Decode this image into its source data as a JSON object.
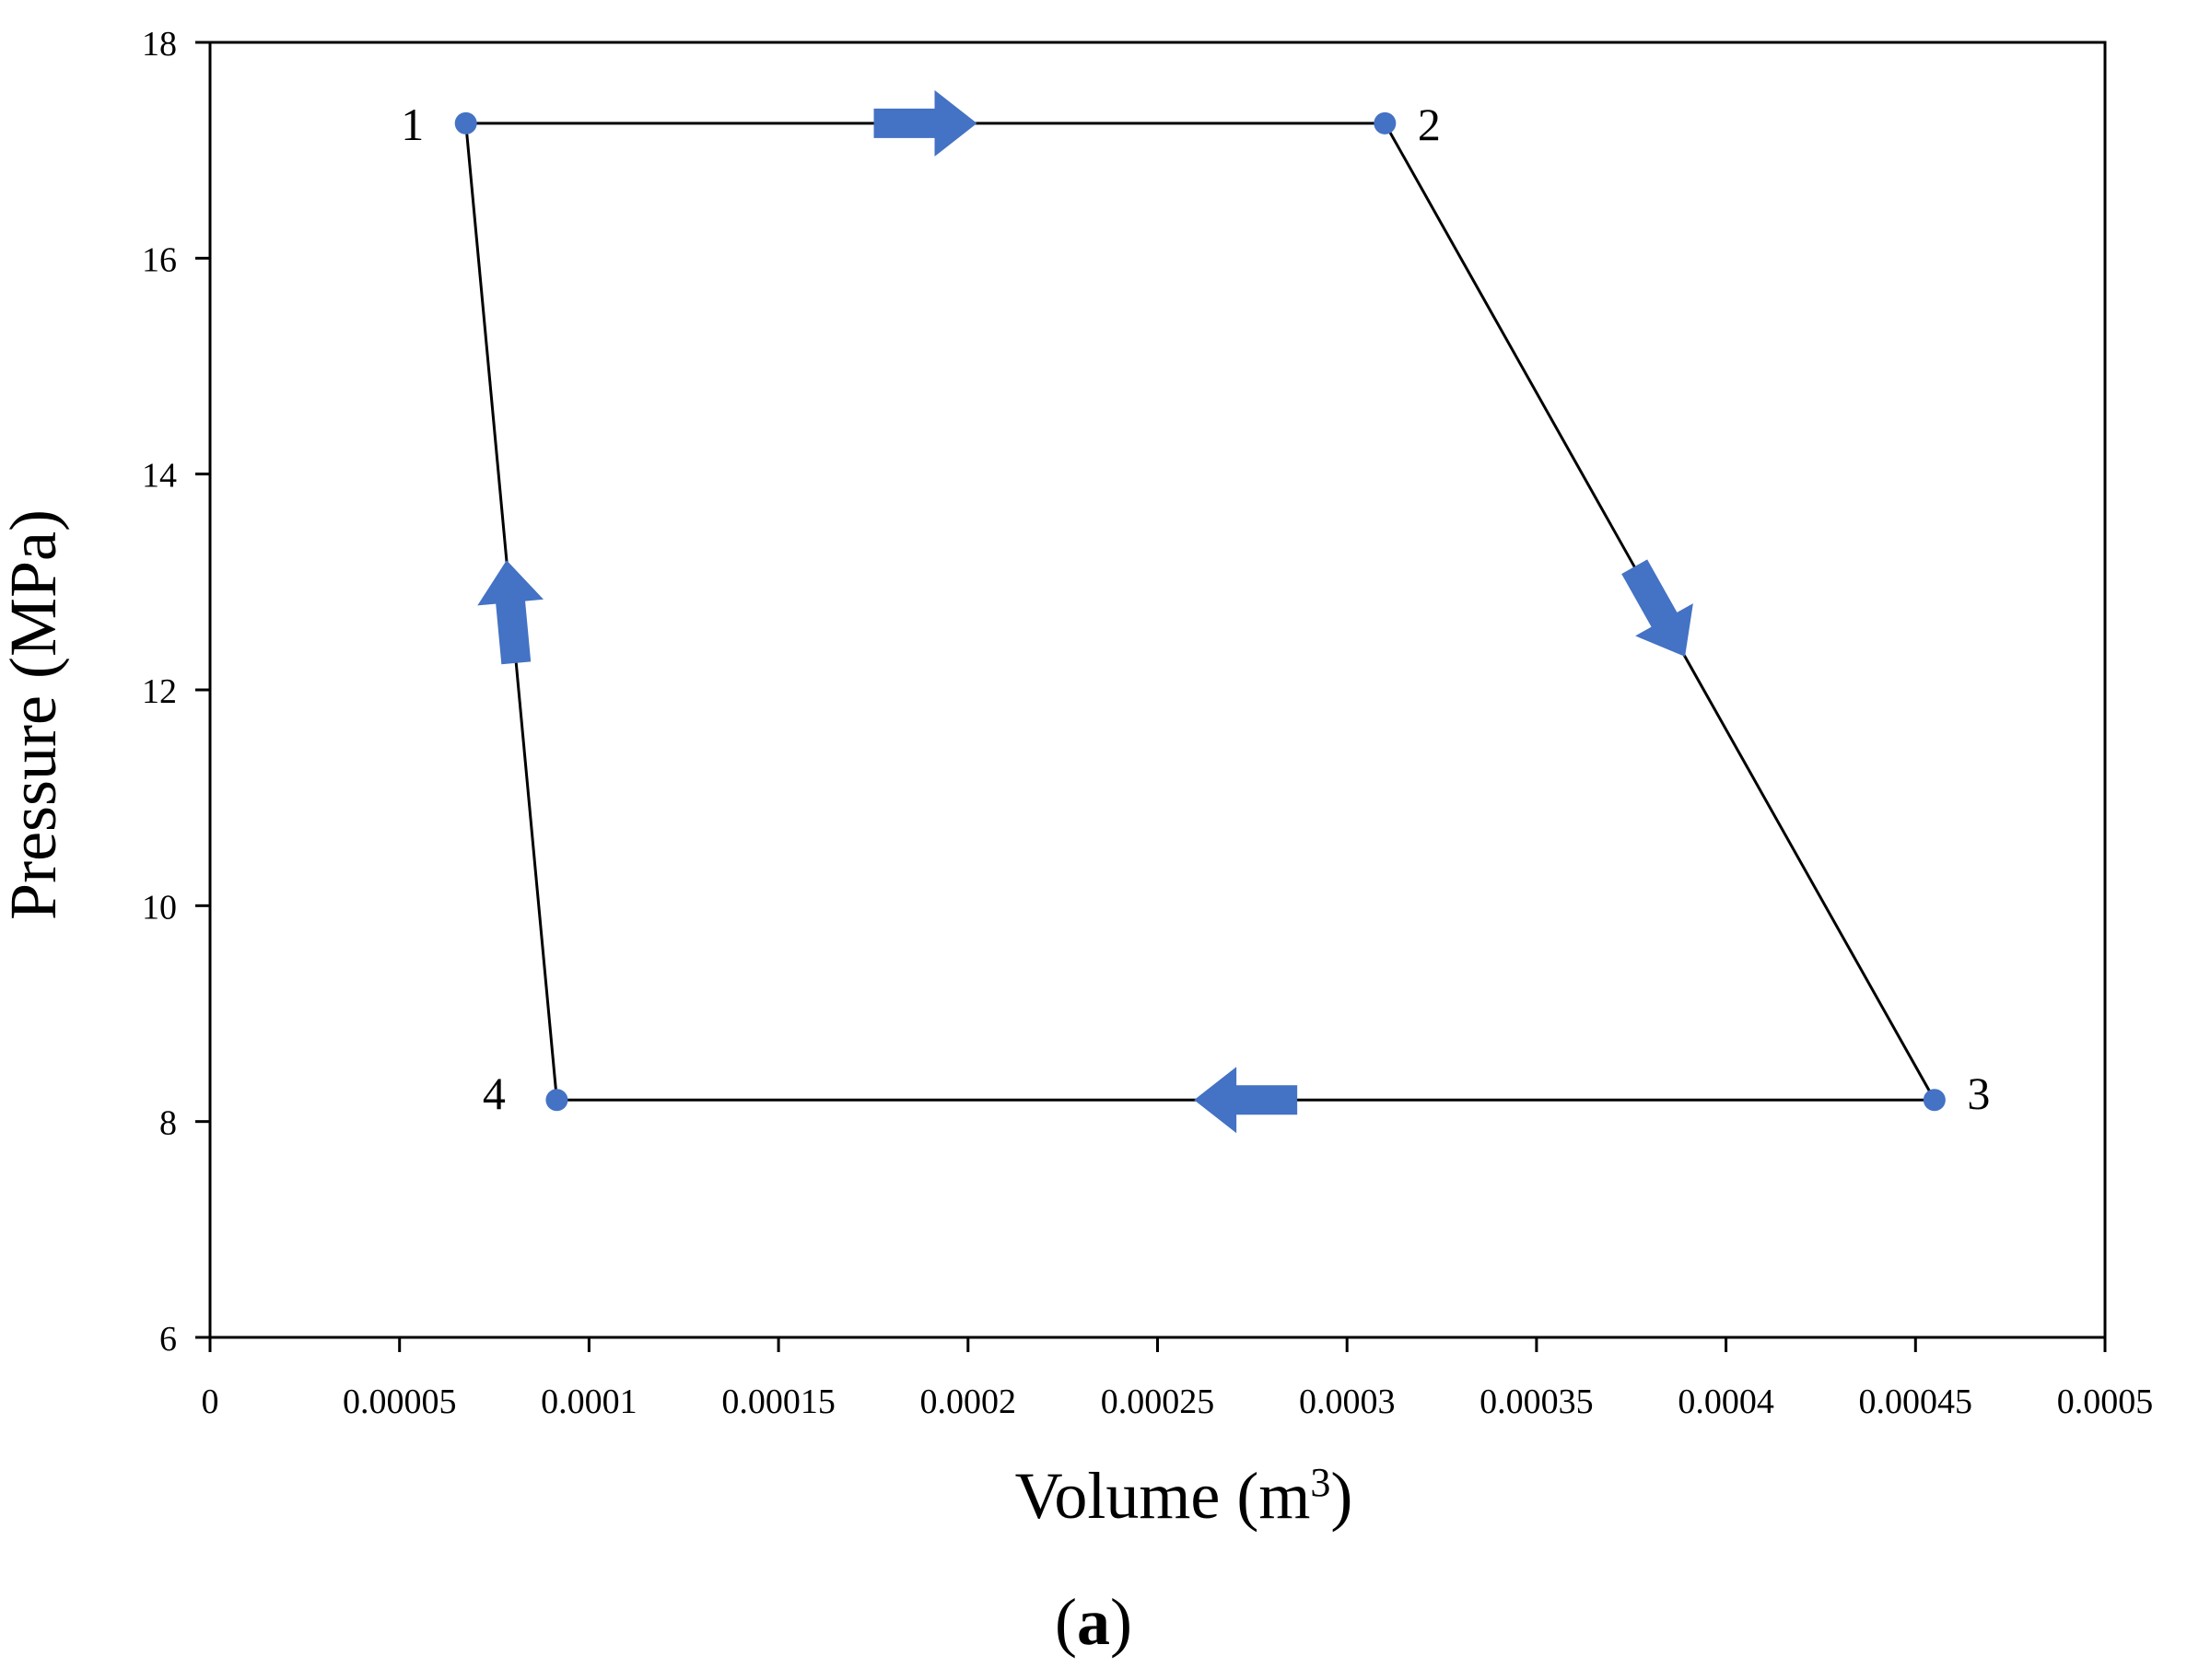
{
  "figure": {
    "panel_label": "a"
  },
  "chart_data": {
    "type": "line",
    "xlabel": "Volume (m",
    "xlabel_superscript": "3",
    "xlabel_suffix": ")",
    "ylabel": "Pressure (MPa)",
    "xlim": [
      0,
      0.0005
    ],
    "ylim": [
      6,
      18
    ],
    "x_ticks": [
      0,
      5e-05,
      0.0001,
      0.00015,
      0.0002,
      0.00025,
      0.0003,
      0.00035,
      0.0004,
      0.00045,
      0.0005
    ],
    "x_tick_labels": [
      "0",
      "0.00005",
      "0.0001",
      "0.00015",
      "0.0002",
      "0.00025",
      "0.0003",
      "0.00035",
      "0.0004",
      "0.00045",
      "0.0005"
    ],
    "y_ticks": [
      6,
      8,
      10,
      12,
      14,
      16,
      18
    ],
    "y_tick_labels": [
      "6",
      "8",
      "10",
      "12",
      "14",
      "16",
      "18"
    ],
    "grid": false,
    "line_color": "#000000",
    "marker_color": "#4472C4",
    "arrow_color": "#4472C4",
    "points": [
      {
        "label": "1",
        "x": 6.75e-05,
        "y": 17.25
      },
      {
        "label": "2",
        "x": 0.00031,
        "y": 17.25
      },
      {
        "label": "3",
        "x": 0.000455,
        "y": 8.2
      },
      {
        "label": "4",
        "x": 9.15e-05,
        "y": 8.2
      }
    ],
    "path_order": [
      "1",
      "2",
      "3",
      "4",
      "1"
    ]
  }
}
